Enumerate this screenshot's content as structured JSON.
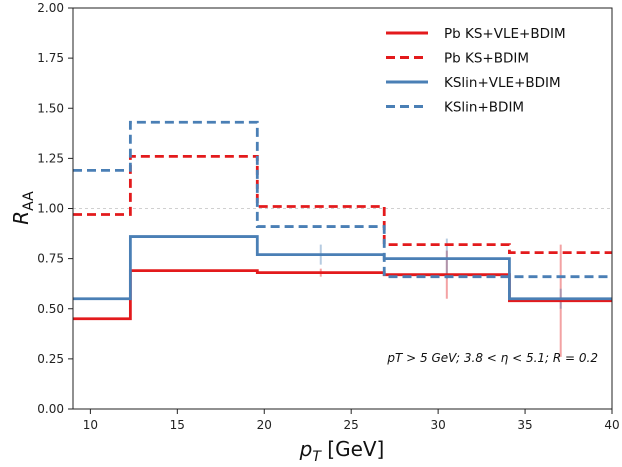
{
  "chart_data": {
    "type": "line",
    "xlabel": "p_T [GeV]",
    "xlabel_main": "p",
    "xlabel_sub": "T",
    "xlabel_unit": " [GeV]",
    "ylabel": "R_AA",
    "ylabel_main": "R",
    "ylabel_sub": "AA",
    "xlim": [
      9,
      40
    ],
    "ylim": [
      0,
      2
    ],
    "x_ticks": [
      10,
      15,
      20,
      25,
      30,
      35,
      40
    ],
    "y_ticks": [
      0.0,
      0.25,
      0.5,
      0.75,
      1.0,
      1.25,
      1.5,
      1.75,
      2.0
    ],
    "y_tick_labels": [
      "0.00",
      "0.25",
      "0.50",
      "0.75",
      "1.00",
      "1.25",
      "1.50",
      "1.75",
      "2.00"
    ],
    "reference_line": 1.0,
    "legend_position": "top-right",
    "annotation": "p_T > 5 GeV; 3.8 < η < 5.1; R = 0.2",
    "annotation_text": "pT > 5 GeV;  3.8 < η < 5.1;  R = 0.2",
    "bin_edges": [
      9,
      12.3,
      19.6,
      26.9,
      34.1,
      40
    ],
    "series": [
      {
        "name": "Pb KS+VLE+BDIM",
        "style": "solid",
        "color": "#e31a1c",
        "values": [
          0.45,
          0.69,
          0.68,
          0.67,
          0.54
        ],
        "errors": [
          0.0,
          0.0,
          0.02,
          0.12,
          0.28
        ]
      },
      {
        "name": "Pb KS+BDIM",
        "style": "dashed",
        "color": "#e31a1c",
        "values": [
          0.97,
          1.26,
          1.01,
          0.82,
          0.78
        ],
        "errors": [
          0.0,
          0.0,
          0.0,
          0.0,
          0.0
        ]
      },
      {
        "name": "KSlin+VLE+BDIM",
        "style": "solid",
        "color": "#4a7fb5",
        "values": [
          0.55,
          0.86,
          0.77,
          0.75,
          0.55
        ],
        "errors": [
          0.0,
          0.0,
          0.05,
          0.1,
          0.05
        ]
      },
      {
        "name": "KSlin+BDIM",
        "style": "dashed",
        "color": "#4a7fb5",
        "values": [
          1.19,
          1.43,
          0.91,
          0.66,
          0.66
        ],
        "errors": [
          0.0,
          0.0,
          0.0,
          0.0,
          0.0
        ]
      }
    ]
  }
}
